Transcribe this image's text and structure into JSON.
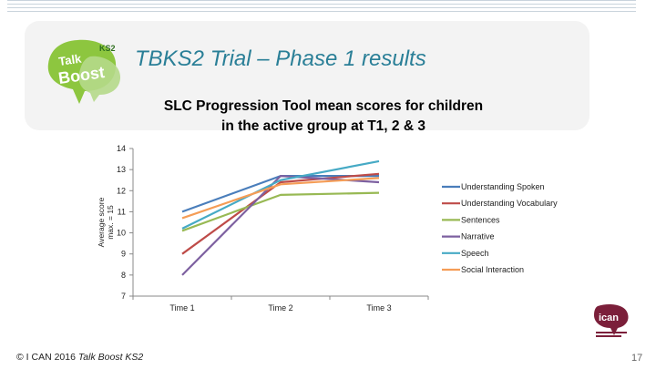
{
  "slide": {
    "title": "TBKS2 Trial – Phase 1 results",
    "footer_prefix": "© I CAN 2016 ",
    "footer_italic": "Talk Boost KS2",
    "page_number": "17",
    "logo_text": "Talk Boost KS2",
    "ican_text": "I CAN"
  },
  "chart_data": {
    "type": "line",
    "title": "SLC Progression Tool mean scores for children in the active group at T1, 2 & 3",
    "title_lines": [
      "SLC Progression Tool mean scores for children",
      "in the active group at T1, 2 & 3"
    ],
    "ylabel_lines": [
      "Average score",
      "max. = 15"
    ],
    "xlabel": "",
    "categories": [
      "Time 1",
      "Time 2",
      "Time 3"
    ],
    "ylim": [
      7,
      14
    ],
    "yticks": [
      7,
      8,
      9,
      10,
      11,
      12,
      13,
      14
    ],
    "grid": false,
    "legend_position": "right",
    "series": [
      {
        "name": "Understanding Spoken",
        "color": "#4a7ebb",
        "values": [
          11.0,
          12.7,
          12.7
        ]
      },
      {
        "name": "Understanding Vocabulary",
        "color": "#be4b48",
        "values": [
          9.0,
          12.4,
          12.8
        ]
      },
      {
        "name": "Sentences",
        "color": "#98b954",
        "values": [
          10.1,
          11.8,
          11.9
        ]
      },
      {
        "name": "Narrative",
        "color": "#7d60a0",
        "values": [
          8.0,
          12.7,
          12.4
        ]
      },
      {
        "name": "Speech",
        "color": "#46aac5",
        "values": [
          10.2,
          12.5,
          13.4
        ]
      },
      {
        "name": "Social Interaction",
        "color": "#f59d56",
        "values": [
          10.7,
          12.3,
          12.6
        ]
      }
    ]
  }
}
